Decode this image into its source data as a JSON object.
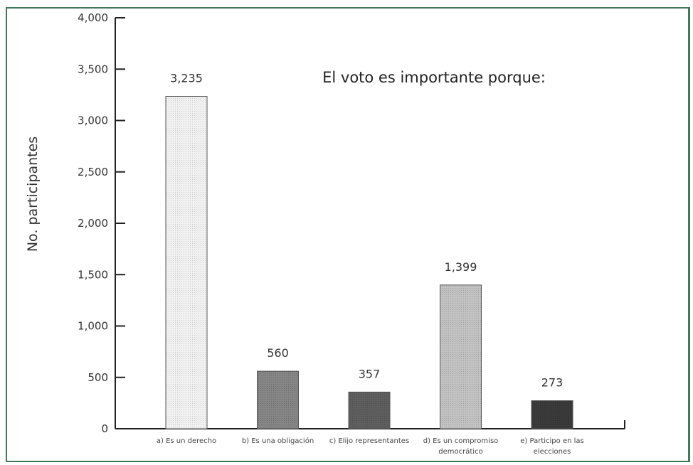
{
  "chart_data": {
    "type": "bar",
    "title": "El voto es importante porque:",
    "ylabel": "No. participantes",
    "xlabel": "",
    "ylim": [
      0,
      4000
    ],
    "yticks": [
      "0",
      "500",
      "1,000",
      "1,500",
      "2,000",
      "2,500",
      "3,000",
      "3,500",
      "4,000"
    ],
    "categories": [
      [
        "a) Es un derecho"
      ],
      [
        "b) Es una obligación"
      ],
      [
        "c) Elijo representantes"
      ],
      [
        "d) Es un compromiso",
        "democrático"
      ],
      [
        "e) Participo en las",
        "elecciones"
      ]
    ],
    "values": [
      3235,
      560,
      357,
      1399,
      273
    ],
    "value_labels": [
      "3,235",
      "560",
      "357",
      "1,399",
      "273"
    ],
    "bar_colors": [
      "#f1f1f1",
      "#858585",
      "#5e5e5e",
      "#c2c2c2",
      "#3a3a3a"
    ],
    "grid": false
  }
}
